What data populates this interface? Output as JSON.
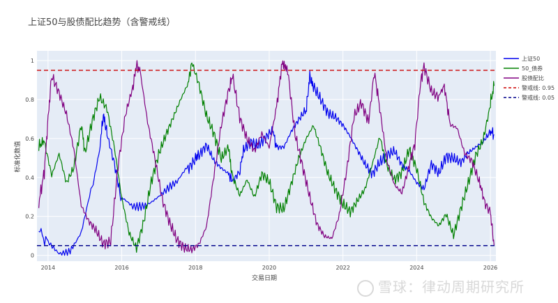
{
  "chart_data": {
    "type": "line",
    "title": "上证50与股债配比趋势（含警戒线）",
    "xlabel": "交易日期",
    "ylabel": "标准化数值",
    "xlim": [
      2013.7,
      2026.15
    ],
    "ylim": [
      -0.03,
      1.05
    ],
    "x_ticks": [
      2014,
      2016,
      2018,
      2020,
      2022,
      2024,
      2026
    ],
    "y_ticks": [
      0,
      0.2,
      0.4,
      0.6,
      0.8,
      1
    ],
    "grid": true,
    "legend_position": "right",
    "series": [
      {
        "name": "上证50",
        "color": "#0000ee",
        "points": [
          [
            2013.75,
            0.13
          ],
          [
            2014.0,
            0.06
          ],
          [
            2014.3,
            0.02
          ],
          [
            2014.6,
            0.04
          ],
          [
            2014.9,
            0.12
          ],
          [
            2015.2,
            0.35
          ],
          [
            2015.4,
            0.55
          ],
          [
            2015.5,
            0.72
          ],
          [
            2015.6,
            0.63
          ],
          [
            2015.8,
            0.48
          ],
          [
            2016.0,
            0.28
          ],
          [
            2016.3,
            0.25
          ],
          [
            2016.6,
            0.27
          ],
          [
            2016.9,
            0.3
          ],
          [
            2017.2,
            0.33
          ],
          [
            2017.5,
            0.36
          ],
          [
            2017.8,
            0.45
          ],
          [
            2018.0,
            0.5
          ],
          [
            2018.1,
            0.52
          ],
          [
            2018.3,
            0.57
          ],
          [
            2018.5,
            0.49
          ],
          [
            2018.7,
            0.45
          ],
          [
            2018.9,
            0.42
          ],
          [
            2019.0,
            0.38
          ],
          [
            2019.2,
            0.43
          ],
          [
            2019.3,
            0.54
          ],
          [
            2019.5,
            0.58
          ],
          [
            2019.7,
            0.56
          ],
          [
            2019.9,
            0.6
          ],
          [
            2020.1,
            0.64
          ],
          [
            2020.2,
            0.55
          ],
          [
            2020.4,
            0.55
          ],
          [
            2020.6,
            0.63
          ],
          [
            2020.8,
            0.69
          ],
          [
            2021.0,
            0.74
          ],
          [
            2021.1,
            0.92
          ],
          [
            2021.2,
            0.86
          ],
          [
            2021.4,
            0.79
          ],
          [
            2021.6,
            0.72
          ],
          [
            2021.8,
            0.7
          ],
          [
            2022.0,
            0.66
          ],
          [
            2022.2,
            0.6
          ],
          [
            2022.4,
            0.53
          ],
          [
            2022.6,
            0.46
          ],
          [
            2022.8,
            0.41
          ],
          [
            2023.0,
            0.47
          ],
          [
            2023.2,
            0.51
          ],
          [
            2023.4,
            0.53
          ],
          [
            2023.6,
            0.46
          ],
          [
            2023.8,
            0.43
          ],
          [
            2024.0,
            0.37
          ],
          [
            2024.2,
            0.34
          ],
          [
            2024.4,
            0.47
          ],
          [
            2024.6,
            0.42
          ],
          [
            2024.8,
            0.51
          ],
          [
            2025.0,
            0.5
          ],
          [
            2025.2,
            0.48
          ],
          [
            2025.4,
            0.53
          ],
          [
            2025.6,
            0.56
          ],
          [
            2025.8,
            0.59
          ],
          [
            2026.0,
            0.64
          ],
          [
            2026.1,
            0.62
          ]
        ]
      },
      {
        "name": "50_债券",
        "color": "#008000",
        "points": [
          [
            2013.75,
            0.56
          ],
          [
            2013.9,
            0.59
          ],
          [
            2014.1,
            0.42
          ],
          [
            2014.3,
            0.53
          ],
          [
            2014.5,
            0.38
          ],
          [
            2014.7,
            0.46
          ],
          [
            2014.9,
            0.68
          ],
          [
            2015.0,
            0.53
          ],
          [
            2015.2,
            0.7
          ],
          [
            2015.4,
            0.82
          ],
          [
            2015.6,
            0.76
          ],
          [
            2015.8,
            0.56
          ],
          [
            2016.0,
            0.3
          ],
          [
            2016.2,
            0.12
          ],
          [
            2016.4,
            0.04
          ],
          [
            2016.6,
            0.18
          ],
          [
            2016.8,
            0.38
          ],
          [
            2017.0,
            0.52
          ],
          [
            2017.2,
            0.62
          ],
          [
            2017.4,
            0.71
          ],
          [
            2017.6,
            0.8
          ],
          [
            2017.8,
            0.88
          ],
          [
            2017.9,
            0.99
          ],
          [
            2018.1,
            0.87
          ],
          [
            2018.3,
            0.71
          ],
          [
            2018.5,
            0.62
          ],
          [
            2018.7,
            0.49
          ],
          [
            2018.9,
            0.55
          ],
          [
            2019.0,
            0.4
          ],
          [
            2019.2,
            0.3
          ],
          [
            2019.4,
            0.38
          ],
          [
            2019.6,
            0.29
          ],
          [
            2019.8,
            0.41
          ],
          [
            2020.0,
            0.37
          ],
          [
            2020.2,
            0.24
          ],
          [
            2020.4,
            0.23
          ],
          [
            2020.6,
            0.36
          ],
          [
            2020.8,
            0.49
          ],
          [
            2021.0,
            0.59
          ],
          [
            2021.2,
            0.66
          ],
          [
            2021.4,
            0.54
          ],
          [
            2021.6,
            0.41
          ],
          [
            2021.8,
            0.33
          ],
          [
            2022.0,
            0.26
          ],
          [
            2022.2,
            0.22
          ],
          [
            2022.4,
            0.28
          ],
          [
            2022.6,
            0.34
          ],
          [
            2022.8,
            0.47
          ],
          [
            2023.0,
            0.61
          ],
          [
            2023.2,
            0.46
          ],
          [
            2023.4,
            0.39
          ],
          [
            2023.6,
            0.43
          ],
          [
            2023.8,
            0.55
          ],
          [
            2024.0,
            0.45
          ],
          [
            2024.2,
            0.28
          ],
          [
            2024.4,
            0.2
          ],
          [
            2024.6,
            0.16
          ],
          [
            2024.8,
            0.22
          ],
          [
            2025.0,
            0.11
          ],
          [
            2025.2,
            0.25
          ],
          [
            2025.4,
            0.38
          ],
          [
            2025.6,
            0.52
          ],
          [
            2025.8,
            0.6
          ],
          [
            2026.0,
            0.78
          ],
          [
            2026.1,
            0.87
          ]
        ]
      },
      {
        "name": "股债配比",
        "color": "#800080",
        "points": [
          [
            2013.75,
            0.27
          ],
          [
            2013.9,
            0.43
          ],
          [
            2014.0,
            0.7
          ],
          [
            2014.1,
            0.93
          ],
          [
            2014.3,
            0.84
          ],
          [
            2014.5,
            0.73
          ],
          [
            2014.7,
            0.55
          ],
          [
            2014.9,
            0.26
          ],
          [
            2015.1,
            0.18
          ],
          [
            2015.3,
            0.13
          ],
          [
            2015.5,
            0.06
          ],
          [
            2015.7,
            0.07
          ],
          [
            2015.9,
            0.46
          ],
          [
            2016.1,
            0.72
          ],
          [
            2016.3,
            0.86
          ],
          [
            2016.4,
            0.98
          ],
          [
            2016.5,
            0.94
          ],
          [
            2016.7,
            0.68
          ],
          [
            2016.9,
            0.49
          ],
          [
            2017.1,
            0.28
          ],
          [
            2017.3,
            0.16
          ],
          [
            2017.5,
            0.07
          ],
          [
            2017.7,
            0.03
          ],
          [
            2017.9,
            0.02
          ],
          [
            2018.1,
            0.05
          ],
          [
            2018.3,
            0.14
          ],
          [
            2018.5,
            0.4
          ],
          [
            2018.7,
            0.66
          ],
          [
            2018.9,
            0.84
          ],
          [
            2019.0,
            0.92
          ],
          [
            2019.2,
            0.7
          ],
          [
            2019.4,
            0.59
          ],
          [
            2019.6,
            0.53
          ],
          [
            2019.8,
            0.62
          ],
          [
            2020.0,
            0.55
          ],
          [
            2020.2,
            0.76
          ],
          [
            2020.35,
            0.99
          ],
          [
            2020.5,
            0.95
          ],
          [
            2020.7,
            0.62
          ],
          [
            2020.9,
            0.46
          ],
          [
            2021.1,
            0.3
          ],
          [
            2021.3,
            0.16
          ],
          [
            2021.5,
            0.1
          ],
          [
            2021.7,
            0.09
          ],
          [
            2021.9,
            0.21
          ],
          [
            2022.1,
            0.44
          ],
          [
            2022.3,
            0.72
          ],
          [
            2022.5,
            0.79
          ],
          [
            2022.7,
            0.69
          ],
          [
            2022.85,
            0.94
          ],
          [
            2023.0,
            0.76
          ],
          [
            2023.2,
            0.49
          ],
          [
            2023.4,
            0.37
          ],
          [
            2023.6,
            0.33
          ],
          [
            2023.8,
            0.47
          ],
          [
            2023.95,
            0.57
          ],
          [
            2024.1,
            0.88
          ],
          [
            2024.2,
            0.98
          ],
          [
            2024.4,
            0.85
          ],
          [
            2024.6,
            0.82
          ],
          [
            2024.75,
            0.87
          ],
          [
            2024.9,
            0.68
          ],
          [
            2025.1,
            0.66
          ],
          [
            2025.3,
            0.53
          ],
          [
            2025.5,
            0.49
          ],
          [
            2025.7,
            0.38
          ],
          [
            2025.85,
            0.27
          ],
          [
            2026.0,
            0.22
          ],
          [
            2026.1,
            0.05
          ]
        ]
      },
      {
        "name": "警戒线: 0.95",
        "color": "#cc0000",
        "dashed": true,
        "constant": 0.95
      },
      {
        "name": "警戒线: 0.05",
        "color": "#00008b",
        "dashed": true,
        "constant": 0.05
      }
    ]
  }
}
